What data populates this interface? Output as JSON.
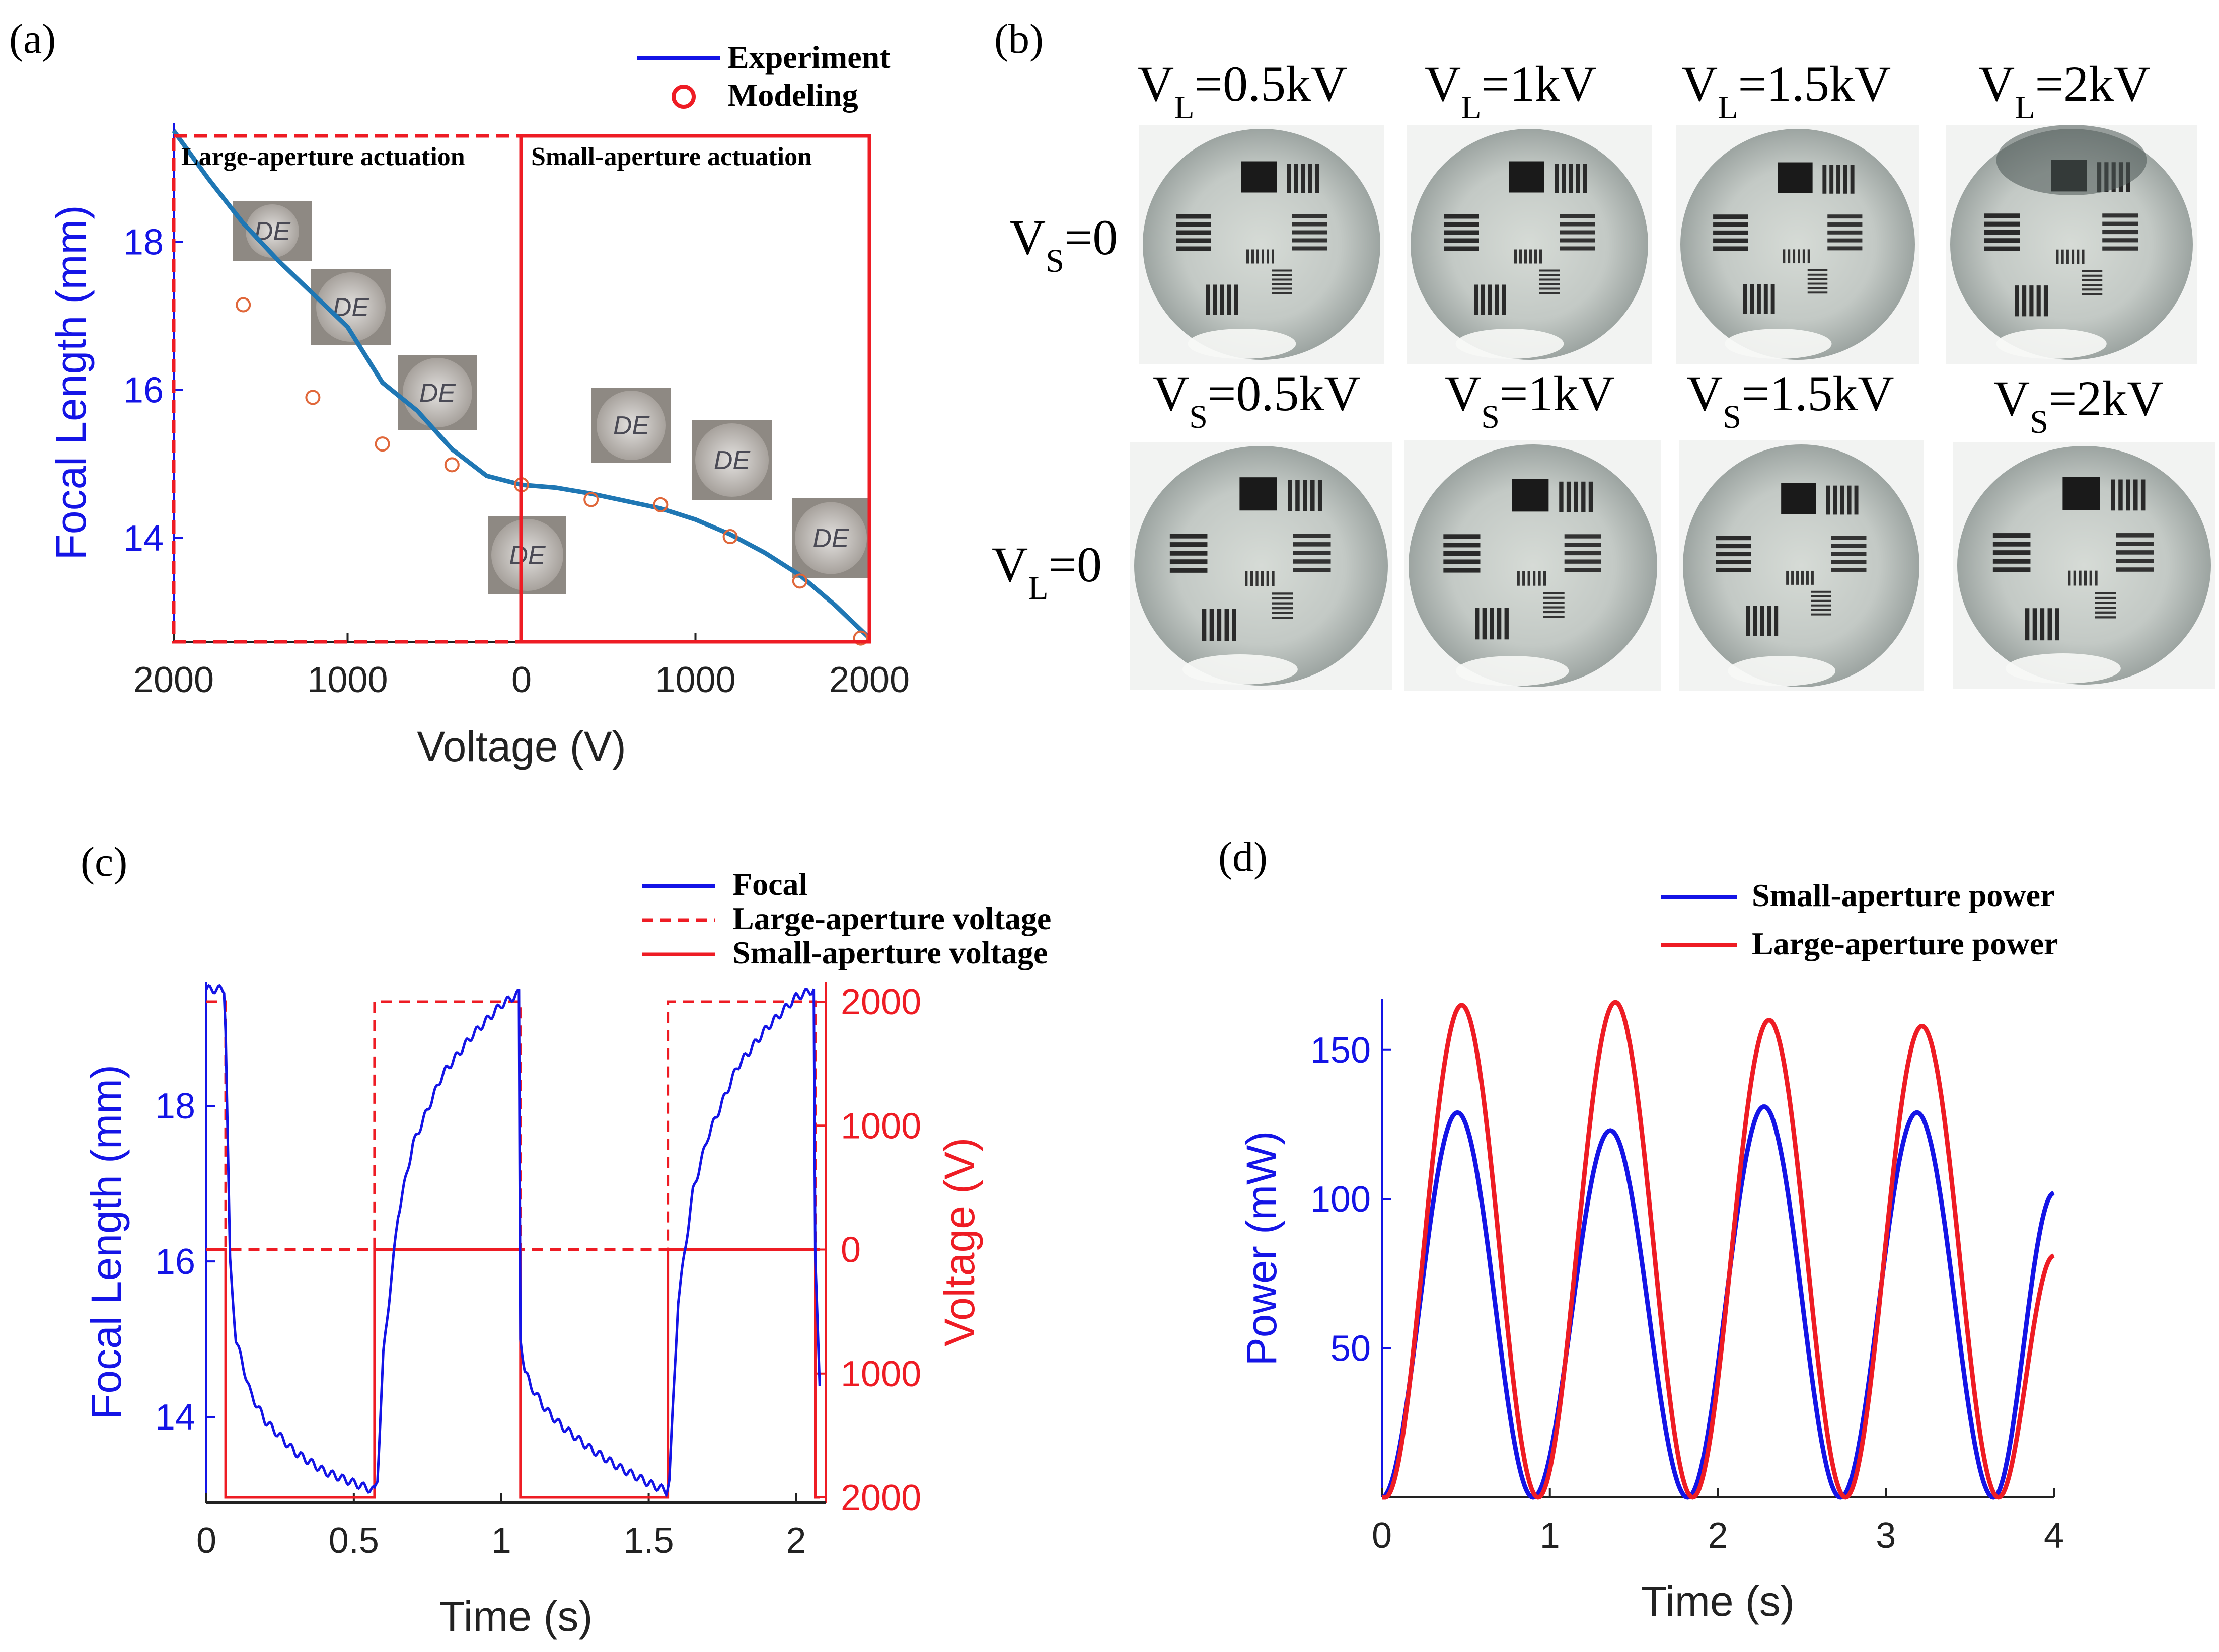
{
  "panels": {
    "a": {
      "label": "(a)",
      "legend": {
        "experiment": "Experiment",
        "modeling": "Modeling"
      },
      "regions": {
        "large": "Large-aperture actuation",
        "small": "Small-aperture actuation"
      },
      "inset_text": "DE"
    },
    "b": {
      "label": "(b)",
      "col_titles": [
        {
          "v": "V",
          "sub": "L",
          "rest": "=0.5kV"
        },
        {
          "v": "V",
          "sub": "L",
          "rest": "=1kV"
        },
        {
          "v": "V",
          "sub": "L",
          "rest": "=1.5kV"
        },
        {
          "v": "V",
          "sub": "L",
          "rest": "=2kV"
        },
        {
          "v": "V",
          "sub": "S",
          "rest": "=0.5kV"
        },
        {
          "v": "V",
          "sub": "S",
          "rest": "=1kV"
        },
        {
          "v": "V",
          "sub": "S",
          "rest": "=1.5kV"
        },
        {
          "v": "V",
          "sub": "S",
          "rest": "=2kV"
        }
      ],
      "row_labels": [
        {
          "v": "V",
          "sub": "S",
          "rest": "=0"
        },
        {
          "v": "V",
          "sub": "L",
          "rest": "=0"
        }
      ]
    },
    "c": {
      "label": "(c)",
      "legend": {
        "focal": "Focal",
        "large": "Large-aperture voltage",
        "small": "Small-aperture voltage"
      }
    },
    "d": {
      "label": "(d)",
      "legend": {
        "small": "Small-aperture power",
        "large": "Large-aperture power"
      }
    }
  },
  "colors": {
    "blue": "#1414e6",
    "curve": "#1f77b4",
    "red": "#ee1c24",
    "orange": "#e0673a"
  },
  "chart_data": [
    {
      "id": "a",
      "type": "line",
      "xlabel": "Voltage (V)",
      "ylabel": "Focal Length (mm)",
      "xlim": [
        -2000,
        2000
      ],
      "xtick_values": [
        -2000,
        -1000,
        0,
        1000,
        2000
      ],
      "xtick_labels": [
        "2000",
        "1000",
        "0",
        "1000",
        "2000"
      ],
      "ylim": [
        12.6,
        19.6
      ],
      "yticks": [
        14,
        16,
        18
      ],
      "series": [
        {
          "name": "Experiment",
          "style": "line",
          "x": [
            -2000,
            -1800,
            -1600,
            -1400,
            -1200,
            -1000,
            -800,
            -600,
            -400,
            -200,
            0,
            200,
            400,
            600,
            800,
            1000,
            1200,
            1400,
            1600,
            1800,
            2000
          ],
          "y": [
            19.5,
            18.85,
            18.25,
            17.75,
            17.3,
            16.85,
            16.1,
            15.72,
            15.2,
            14.84,
            14.72,
            14.68,
            14.6,
            14.5,
            14.4,
            14.25,
            14.05,
            13.8,
            13.5,
            13.1,
            12.65
          ]
        },
        {
          "name": "Modeling",
          "style": "marker",
          "x": [
            -1600,
            -1200,
            -800,
            -400,
            0,
            400,
            800,
            1200,
            1600,
            1950
          ],
          "y": [
            17.15,
            15.9,
            15.27,
            14.99,
            14.72,
            14.52,
            14.45,
            14.02,
            13.42,
            12.65
          ]
        }
      ]
    },
    {
      "id": "c",
      "type": "line",
      "xlabel": "Time (s)",
      "ylabel": "Focal Length (mm)",
      "y2label": "Voltage (V)",
      "xlim": [
        0,
        2.1
      ],
      "xticks": [
        0,
        0.5,
        1,
        1.5,
        2
      ],
      "ylim": [
        12.9,
        19.6
      ],
      "yticks": [
        14,
        16,
        18
      ],
      "y2lim": [
        -2000,
        2000
      ],
      "y2tick_values": [
        2000,
        1000,
        0,
        -1000,
        -2000
      ],
      "y2tick_labels": [
        "2000",
        "1000",
        "0",
        "1000",
        "2000"
      ],
      "series": [
        {
          "name": "Focal",
          "axis": "left",
          "x": [
            0,
            0.06,
            0.065,
            0.08,
            0.1,
            0.15,
            0.2,
            0.3,
            0.4,
            0.5,
            0.57,
            0.58,
            0.6,
            0.65,
            0.7,
            0.8,
            0.9,
            1.0,
            1.06,
            1.065,
            1.08,
            1.1,
            1.15,
            1.2,
            1.3,
            1.4,
            1.5,
            1.56,
            1.57,
            1.6,
            1.65,
            1.7,
            1.8,
            1.9,
            2.0,
            2.06,
            2.065,
            2.08
          ],
          "y": [
            19.5,
            19.5,
            19.0,
            16.0,
            15.0,
            14.3,
            13.95,
            13.55,
            13.3,
            13.15,
            13.05,
            13.2,
            14.8,
            16.6,
            17.5,
            18.4,
            18.9,
            19.3,
            19.45,
            15.0,
            14.6,
            14.4,
            14.1,
            13.9,
            13.6,
            13.35,
            13.15,
            13.05,
            13.2,
            15.5,
            16.9,
            17.6,
            18.5,
            19.0,
            19.4,
            19.5,
            16.0,
            14.4
          ]
        },
        {
          "name": "Large-aperture voltage",
          "axis": "right",
          "style": "dashed",
          "x": [
            0,
            0.065,
            0.065,
            0.57,
            0.57,
            1.065,
            1.065,
            1.565,
            1.565,
            2.065,
            2.065,
            2.08
          ],
          "y": [
            2000,
            2000,
            0,
            0,
            2000,
            2000,
            0,
            0,
            2000,
            2000,
            0,
            0
          ]
        },
        {
          "name": "Small-aperture voltage",
          "axis": "right",
          "style": "solid",
          "x": [
            0,
            0,
            0.065,
            0.065,
            0.57,
            0.57,
            1.065,
            1.065,
            1.565,
            1.565,
            2.065,
            2.065,
            2.08
          ],
          "y": [
            0,
            0,
            0,
            -2000,
            -2000,
            0,
            0,
            -2000,
            -2000,
            0,
            0,
            -2000,
            -2000
          ]
        }
      ]
    },
    {
      "id": "d",
      "type": "line",
      "xlabel": "Time (s)",
      "ylabel": "Power (mW)",
      "xlim": [
        0,
        4
      ],
      "xticks": [
        0,
        1,
        2,
        3,
        4
      ],
      "ylim": [
        0,
        167
      ],
      "yticks": [
        50,
        100,
        150
      ],
      "series": [
        {
          "name": "Small-aperture power",
          "color": "blue",
          "peaks": [
            0.43,
            1.35,
            2.27,
            3.19
          ],
          "amps": [
            129,
            123,
            131,
            129
          ],
          "min_t": [
            0,
            0.9,
            1.82,
            2.73,
            3.64
          ],
          "end": [
            4.0,
            102
          ]
        },
        {
          "name": "Large-aperture power",
          "color": "red",
          "peaks": [
            0.46,
            1.37,
            2.29,
            3.21
          ],
          "amps": [
            165,
            166,
            160,
            158
          ],
          "min_t": [
            0.02,
            0.93,
            1.85,
            2.76,
            3.67
          ],
          "end": [
            4.0,
            81
          ]
        }
      ]
    }
  ]
}
